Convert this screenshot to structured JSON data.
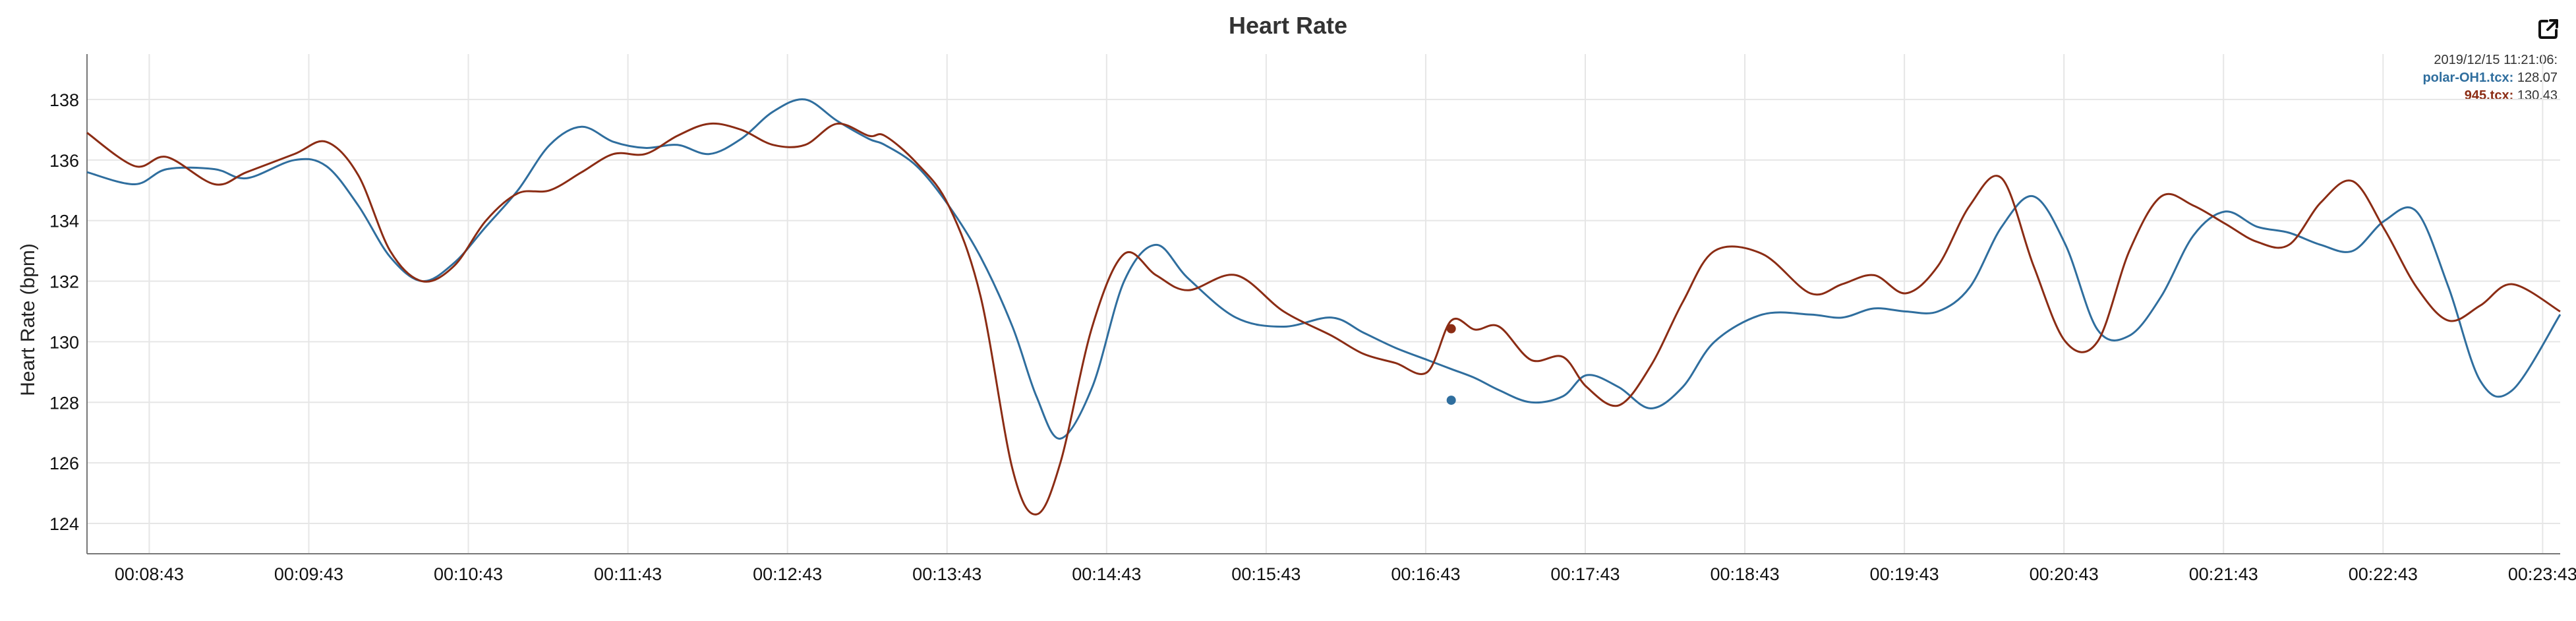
{
  "chart_data": {
    "type": "line",
    "title": "Heart Rate",
    "ylabel": "Heart Rate (bpm)",
    "xlabel": "",
    "ylim": [
      123,
      139.5
    ],
    "xlim": [
      0,
      15.5
    ],
    "yticks": [
      124,
      126,
      128,
      130,
      132,
      134,
      136,
      138
    ],
    "x_tick_positions": [
      0.39,
      1.39,
      2.39,
      3.39,
      4.39,
      5.39,
      6.39,
      7.39,
      8.39,
      9.39,
      10.39,
      11.39,
      12.39,
      13.39,
      14.39,
      15.39
    ],
    "xtick_labels": [
      "00:08:43",
      "00:09:43",
      "00:10:43",
      "00:11:43",
      "00:12:43",
      "00:13:43",
      "00:14:43",
      "00:15:43",
      "00:16:43",
      "00:17:43",
      "00:18:43",
      "00:19:43",
      "00:20:43",
      "00:21:43",
      "00:22:43",
      "00:23:43"
    ],
    "grid": true,
    "legend": "top-right",
    "x": [
      0,
      0.3,
      0.5,
      0.8,
      1.0,
      1.3,
      1.5,
      1.7,
      1.9,
      2.1,
      2.3,
      2.5,
      2.7,
      2.9,
      3.1,
      3.3,
      3.5,
      3.7,
      3.9,
      4.1,
      4.3,
      4.5,
      4.7,
      4.9,
      5.0,
      5.2,
      5.4,
      5.6,
      5.8,
      5.95,
      6.1,
      6.3,
      6.5,
      6.7,
      6.9,
      7.2,
      7.5,
      7.8,
      8.0,
      8.2,
      8.4,
      8.55,
      8.7,
      8.85,
      9.05,
      9.25,
      9.4,
      9.6,
      9.8,
      10.0,
      10.2,
      10.5,
      10.8,
      11.0,
      11.2,
      11.4,
      11.6,
      11.8,
      12.0,
      12.2,
      12.4,
      12.6,
      12.8,
      13.0,
      13.2,
      13.4,
      13.6,
      13.8,
      14.0,
      14.2,
      14.4,
      14.6,
      14.8,
      15.0,
      15.2,
      15.5
    ],
    "series": [
      {
        "name": "polar-OH1.tcx",
        "color": "#2f6e9e",
        "values": [
          135.6,
          135.2,
          135.7,
          135.7,
          135.4,
          136.0,
          135.8,
          134.5,
          132.8,
          132.0,
          132.6,
          133.8,
          135.0,
          136.5,
          137.1,
          136.6,
          136.4,
          136.5,
          136.2,
          136.7,
          137.6,
          138.0,
          137.3,
          136.7,
          136.5,
          135.8,
          134.5,
          132.8,
          130.5,
          128.2,
          126.8,
          128.5,
          132.0,
          133.2,
          132.1,
          130.8,
          130.5,
          130.8,
          130.3,
          129.8,
          129.4,
          129.1,
          128.8,
          128.4,
          128.0,
          128.2,
          128.9,
          128.5,
          127.8,
          128.5,
          130.0,
          130.9,
          130.9,
          130.8,
          131.1,
          131.0,
          131.0,
          131.8,
          133.8,
          134.8,
          133.2,
          130.4,
          130.2,
          131.5,
          133.5,
          134.3,
          133.8,
          133.6,
          133.2,
          133.0,
          134.0,
          134.3,
          131.8,
          128.7,
          128.4,
          130.9
        ],
        "selected": 128.07
      },
      {
        "name": "945.tcx",
        "color": "#8b2c14",
        "values": [
          136.9,
          135.8,
          136.1,
          135.2,
          135.6,
          136.2,
          136.6,
          135.5,
          133.0,
          132.0,
          132.5,
          134.0,
          134.9,
          135.0,
          135.6,
          136.2,
          136.2,
          136.8,
          137.2,
          137.0,
          136.5,
          136.5,
          137.2,
          136.8,
          136.8,
          135.9,
          134.5,
          131.5,
          125.8,
          124.3,
          126.0,
          130.5,
          132.9,
          132.2,
          131.7,
          132.2,
          131.0,
          130.2,
          129.6,
          129.3,
          129.0,
          130.7,
          130.4,
          130.5,
          129.4,
          129.5,
          128.5,
          127.9,
          129.2,
          131.3,
          133.0,
          132.9,
          131.6,
          131.9,
          132.2,
          131.6,
          132.5,
          134.5,
          135.4,
          132.5,
          130.0,
          130.0,
          133.0,
          134.8,
          134.5,
          133.9,
          133.3,
          133.2,
          134.6,
          135.3,
          133.7,
          131.8,
          130.7,
          131.2,
          131.9,
          131.0
        ],
        "selected": 130.43
      }
    ],
    "crosshair": {
      "x": 8.55,
      "time_label": "2019/12/15 11:21:06:"
    }
  },
  "legend_values": [
    "128.07",
    "130.43"
  ],
  "colors": {
    "background": "#ffffff",
    "axis": "#777777",
    "grid": "#e6e6e6"
  },
  "icons": {
    "export": "external-link-icon"
  }
}
